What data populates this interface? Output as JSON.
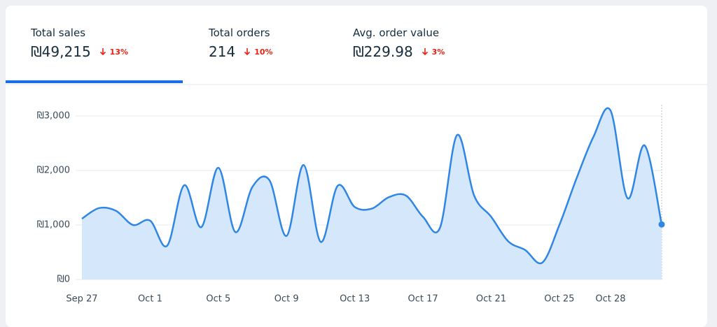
{
  "tabs": [
    {
      "title": "Total sales",
      "value": "₪49,215",
      "change": "13%"
    },
    {
      "title": "Total orders",
      "value": "214",
      "change": "10%"
    },
    {
      "title": "Avg. order value",
      "value": "₪229.98",
      "change": "3%"
    }
  ],
  "chart_data": {
    "type": "area",
    "categories": [
      "Sep 27",
      null,
      null,
      null,
      "Oct 1",
      null,
      null,
      null,
      "Oct 5",
      null,
      null,
      null,
      "Oct 9",
      null,
      null,
      null,
      "Oct 13",
      null,
      null,
      null,
      "Oct 17",
      null,
      null,
      null,
      "Oct 21",
      null,
      null,
      null,
      "Oct 25",
      null,
      null,
      "Oct 28",
      null,
      null,
      null
    ],
    "values": [
      1115,
      1310,
      1260,
      1000,
      1080,
      620,
      1730,
      960,
      2050,
      870,
      1700,
      1820,
      800,
      2100,
      690,
      1720,
      1330,
      1300,
      1510,
      1540,
      1150,
      950,
      2650,
      1540,
      1150,
      700,
      540,
      310,
      1000,
      1850,
      2620,
      3100,
      1490,
      2460,
      1010
    ],
    "color": "#2f86e5",
    "ylim": [
      0,
      3000
    ],
    "yticks": [
      {
        "value": 0,
        "label": "₪0"
      },
      {
        "value": 1000,
        "label": "₪1,000"
      },
      {
        "value": 2000,
        "label": "₪2,000"
      },
      {
        "value": 3000,
        "label": "₪3,000"
      }
    ],
    "grid": true
  }
}
